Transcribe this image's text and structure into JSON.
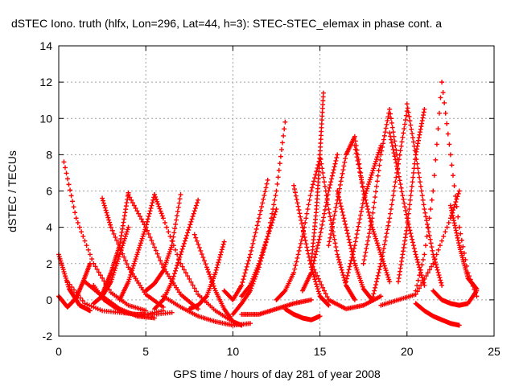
{
  "chart_data": {
    "type": "scatter",
    "title": "dSTEC Iono. truth (hlfx, Lon=296, Lat=44, h=3): STEC-STEC_elemax in phase cont. a",
    "xlabel": "GPS time / hours of day 281 of year 2008",
    "ylabel": "dSTEC  / TECUs",
    "xlim": [
      0,
      25
    ],
    "ylim": [
      -2,
      14
    ],
    "xticks": [
      "0",
      "5",
      "10",
      "15",
      "20",
      "25"
    ],
    "yticks": [
      "-2",
      "0",
      "2",
      "4",
      "6",
      "8",
      "10",
      "12",
      "14"
    ],
    "grid": true,
    "marker": "+",
    "color": "#ff0000",
    "arcs": [
      {
        "x": [
          0.0,
          0.6,
          1.2,
          1.8
        ],
        "y": [
          2.5,
          0.6,
          -0.3,
          -0.6
        ]
      },
      {
        "x": [
          0.0,
          0.5,
          1.0,
          1.4,
          1.8
        ],
        "y": [
          0.2,
          -0.4,
          0.1,
          1.0,
          2.0
        ]
      },
      {
        "x": [
          0.3,
          1.0,
          2.0,
          3.0,
          4.0,
          5.0
        ],
        "y": [
          7.6,
          4.5,
          2.0,
          0.4,
          -0.3,
          -0.6
        ]
      },
      {
        "x": [
          0.5,
          1.5,
          2.5,
          3.5,
          4.5,
          5.5,
          6.5
        ],
        "y": [
          1.0,
          -0.2,
          -0.6,
          -0.7,
          -0.8,
          -0.8,
          -0.7
        ]
      },
      {
        "x": [
          1.5,
          2.5,
          3.5,
          4.5,
          5.5
        ],
        "y": [
          1.0,
          0.2,
          -0.5,
          -0.9,
          -1.0
        ]
      },
      {
        "x": [
          2.0,
          2.6,
          3.2,
          3.8,
          4.4,
          5.0,
          6.0
        ],
        "y": [
          0.8,
          0.0,
          -0.4,
          -0.7,
          -0.8,
          -0.8,
          -0.6
        ]
      },
      {
        "x": [
          2.0,
          2.5,
          3.0,
          3.5,
          4.0
        ],
        "y": [
          -0.2,
          0.2,
          1.0,
          2.5,
          4.0
        ]
      },
      {
        "x": [
          2.5,
          3.0,
          4.0,
          5.0,
          6.0
        ],
        "y": [
          5.6,
          4.0,
          1.8,
          0.3,
          -0.4
        ]
      },
      {
        "x": [
          2.5,
          3.0,
          3.5,
          4.0
        ],
        "y": [
          0.3,
          1.5,
          3.0,
          5.9
        ]
      },
      {
        "x": [
          3.5,
          4.0,
          4.5,
          5.0,
          5.5
        ],
        "y": [
          0.0,
          1.0,
          2.5,
          4.0,
          5.8
        ]
      },
      {
        "x": [
          4.0,
          5.0,
          6.0,
          7.0,
          8.0
        ],
        "y": [
          5.8,
          4.0,
          1.8,
          0.3,
          -0.5
        ]
      },
      {
        "x": [
          5.0,
          5.5,
          6.0,
          6.5,
          7.0
        ],
        "y": [
          0.5,
          0.9,
          1.6,
          3.0,
          5.8
        ]
      },
      {
        "x": [
          5.5,
          6.0,
          7.0,
          8.0,
          9.0,
          10.0
        ],
        "y": [
          5.8,
          4.5,
          2.0,
          0.3,
          -0.6,
          -1.2
        ]
      },
      {
        "x": [
          5.5,
          6.0,
          6.5,
          7.0,
          7.5,
          8.0
        ],
        "y": [
          -0.5,
          0.0,
          1.0,
          2.5,
          4.0,
          5.5
        ]
      },
      {
        "x": [
          6.0,
          7.0,
          8.0,
          9.0,
          10.0,
          11.0
        ],
        "y": [
          0.2,
          -0.4,
          -0.9,
          -1.2,
          -1.4,
          -1.3
        ]
      },
      {
        "x": [
          7.8,
          8.5,
          9.0,
          9.5,
          10.0,
          10.5
        ],
        "y": [
          3.6,
          1.8,
          0.5,
          -0.5,
          -1.2,
          -1.4
        ]
      },
      {
        "x": [
          7.5,
          8.0,
          8.5,
          9.0,
          9.5
        ],
        "y": [
          -0.5,
          -0.3,
          0.2,
          1.5,
          3.2
        ]
      },
      {
        "x": [
          9.5,
          10.0,
          10.5,
          11.0,
          11.5,
          12.0
        ],
        "y": [
          0.5,
          0.0,
          0.8,
          2.5,
          4.5,
          6.6
        ]
      },
      {
        "x": [
          10.0,
          10.5,
          11.0,
          11.5,
          12.0,
          12.5
        ],
        "y": [
          -0.8,
          -0.2,
          0.5,
          1.8,
          3.5,
          5.0
        ]
      },
      {
        "x": [
          10.5,
          11.0,
          11.5,
          12.0,
          12.5,
          13.0
        ],
        "y": [
          0.2,
          0.8,
          2.0,
          3.5,
          6.0,
          9.8
        ]
      },
      {
        "x": [
          10.5,
          11.5,
          12.5,
          13.5,
          14.5
        ],
        "y": [
          -0.8,
          -0.8,
          -0.5,
          -0.2,
          0.0
        ]
      },
      {
        "x": [
          12.5,
          13.0,
          13.5,
          14.0,
          14.5,
          15.0
        ],
        "y": [
          0.0,
          0.5,
          1.5,
          3.5,
          6.0,
          7.8
        ]
      },
      {
        "x": [
          13.5,
          14.0,
          14.5,
          15.0,
          15.5
        ],
        "y": [
          6.3,
          4.0,
          1.8,
          0.2,
          -0.3
        ]
      },
      {
        "x": [
          13.0,
          13.5,
          14.0,
          14.5,
          15.0
        ],
        "y": [
          -0.5,
          -0.8,
          -1.0,
          -1.1,
          -0.9
        ]
      },
      {
        "x": [
          14.0,
          14.5,
          15.0,
          15.5,
          16.0
        ],
        "y": [
          0.5,
          1.5,
          3.5,
          6.0,
          8.0
        ]
      },
      {
        "x": [
          14.5,
          14.8,
          15.0,
          15.2
        ],
        "y": [
          2.0,
          5.0,
          8.0,
          11.4
        ]
      },
      {
        "x": [
          15.0,
          15.5,
          16.0,
          16.5,
          17.0
        ],
        "y": [
          8.0,
          5.0,
          2.5,
          0.8,
          0.0
        ]
      },
      {
        "x": [
          14.5,
          15.5,
          16.5,
          17.5,
          18.5
        ],
        "y": [
          2.0,
          0.0,
          -0.5,
          -0.3,
          0.2
        ]
      },
      {
        "x": [
          15.5,
          16.0,
          16.5,
          17.0,
          17.5
        ],
        "y": [
          3.0,
          5.5,
          8.0,
          9.0,
          6.0
        ]
      },
      {
        "x": [
          16.0,
          16.5,
          17.0,
          17.5,
          18.0
        ],
        "y": [
          6.0,
          4.0,
          2.0,
          0.6,
          0.0
        ]
      },
      {
        "x": [
          16.5,
          17.0,
          17.5,
          18.0,
          18.5
        ],
        "y": [
          1.0,
          3.0,
          5.5,
          7.0,
          8.5
        ]
      },
      {
        "x": [
          17.0,
          17.5,
          18.0,
          18.5,
          19.0
        ],
        "y": [
          8.5,
          6.0,
          4.0,
          2.5,
          1.0
        ]
      },
      {
        "x": [
          17.5,
          18.0,
          18.5,
          19.0,
          19.5
        ],
        "y": [
          2.0,
          4.5,
          8.0,
          10.5,
          7.5
        ]
      },
      {
        "x": [
          18.0,
          18.5,
          19.0,
          19.5,
          20.0
        ],
        "y": [
          0.0,
          2.0,
          4.5,
          7.5,
          10.4
        ]
      },
      {
        "x": [
          19.0,
          19.5,
          20.0,
          20.5,
          21.0
        ],
        "y": [
          9.2,
          7.0,
          4.5,
          2.5,
          0.8
        ]
      },
      {
        "x": [
          19.5,
          20.0,
          20.5,
          21.0
        ],
        "y": [
          1.0,
          4.0,
          8.0,
          10.5
        ]
      },
      {
        "x": [
          20.0,
          20.5,
          21.0,
          21.5,
          22.0
        ],
        "y": [
          10.8,
          8.0,
          5.0,
          2.5,
          0.8
        ]
      },
      {
        "x": [
          20.5,
          21.0,
          21.5,
          22.0,
          22.5,
          23.0,
          23.5,
          24.0
        ],
        "y": [
          0.5,
          2.5,
          6.0,
          12.0,
          8.0,
          4.0,
          1.5,
          0.2
        ]
      },
      {
        "x": [
          18.5,
          19.5,
          20.5,
          21.5,
          22.5,
          23.0
        ],
        "y": [
          -0.3,
          0.0,
          0.3,
          2.0,
          4.5,
          6.0
        ]
      },
      {
        "x": [
          22.5,
          23.0,
          23.5,
          24.0
        ],
        "y": [
          5.2,
          3.0,
          1.2,
          0.6
        ]
      },
      {
        "x": [
          20.5,
          21.0,
          21.5,
          22.0,
          22.5,
          23.0
        ],
        "y": [
          -0.2,
          -0.6,
          -0.9,
          -1.1,
          -1.3,
          -1.4
        ]
      },
      {
        "x": [
          21.5,
          22.0,
          22.5,
          23.0,
          23.5,
          24.0
        ],
        "y": [
          0.5,
          0.0,
          -0.2,
          -0.3,
          -0.2,
          0.5
        ]
      }
    ]
  }
}
